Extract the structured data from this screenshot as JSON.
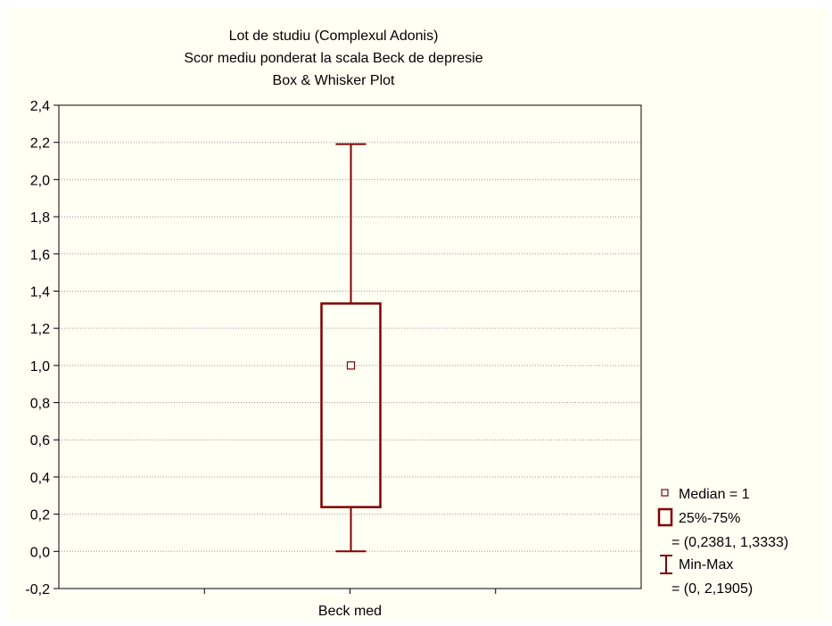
{
  "chart_data": {
    "type": "box",
    "title_lines": [
      "Lot de studiu (Complexul Adonis)",
      "Scor mediu ponderat la scala Beck de depresie",
      "Box & Whisker Plot"
    ],
    "categories": [
      "Beck med"
    ],
    "boxes": [
      {
        "category": "Beck med",
        "median": 1,
        "q1": 0.2381,
        "q3": 1.3333,
        "min": 0,
        "max": 2.1905
      }
    ],
    "ylim": [
      -0.2,
      2.4
    ],
    "yticks": [
      {
        "value": 2.4,
        "label": "2,4"
      },
      {
        "value": 2.2,
        "label": "2,2"
      },
      {
        "value": 2.0,
        "label": "2,0"
      },
      {
        "value": 1.8,
        "label": "1,8"
      },
      {
        "value": 1.6,
        "label": "1,6"
      },
      {
        "value": 1.4,
        "label": "1,4"
      },
      {
        "value": 1.2,
        "label": "1,2"
      },
      {
        "value": 1.0,
        "label": "1,0"
      },
      {
        "value": 0.8,
        "label": "0,8"
      },
      {
        "value": 0.6,
        "label": "0,6"
      },
      {
        "value": 0.4,
        "label": "0,4"
      },
      {
        "value": 0.2,
        "label": "0,2"
      },
      {
        "value": 0.0,
        "label": "0,0"
      },
      {
        "value": -0.2,
        "label": "-0,2"
      }
    ],
    "grid": true,
    "legend_position": "right",
    "legend": [
      {
        "symbol": "median-marker",
        "lines": [
          "Median = 1"
        ]
      },
      {
        "symbol": "box",
        "lines": [
          "25%-75%",
          "= (0,2381, 1,3333)"
        ]
      },
      {
        "symbol": "whisker",
        "lines": [
          "Min-Max",
          "= (0, 2,1905)"
        ]
      }
    ],
    "colors": {
      "series": "#800000",
      "background": "#fffff4",
      "grid": "#999999",
      "axis": "#000000"
    }
  }
}
